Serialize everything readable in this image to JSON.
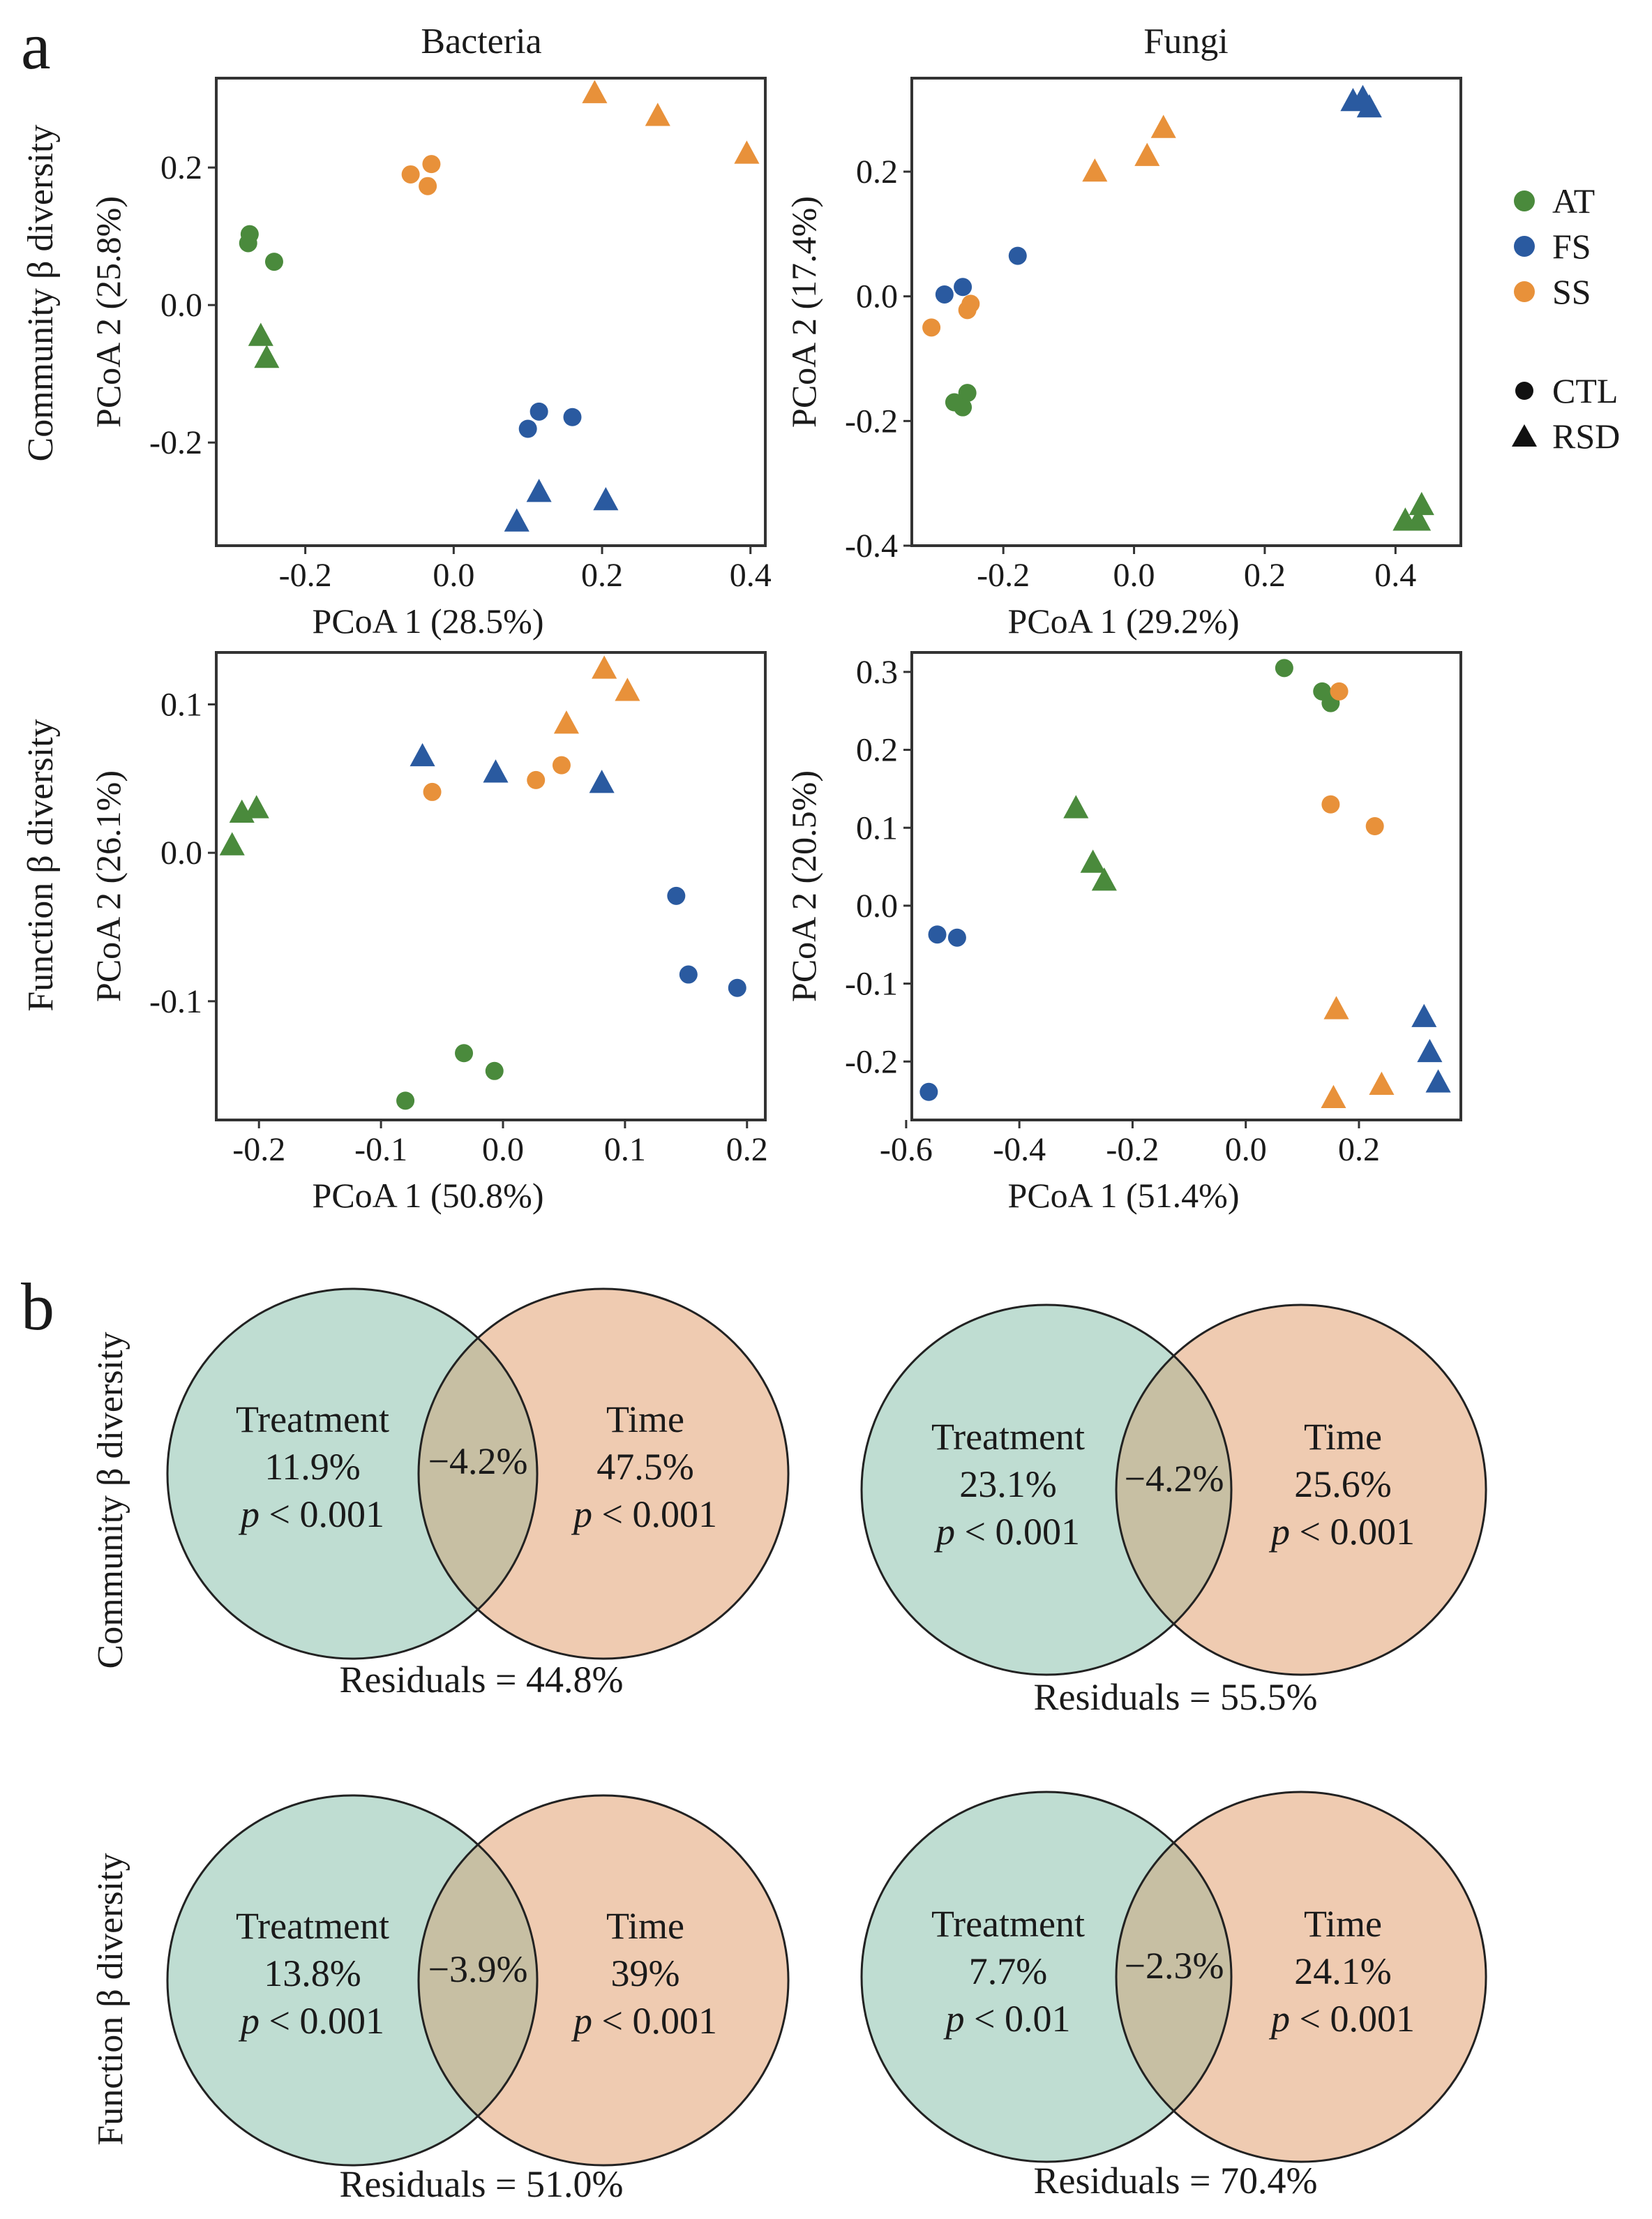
{
  "figure": {
    "panel_a_label": "a",
    "panel_b_label": "b",
    "col_titles": [
      "Bacteria",
      "Fungi"
    ],
    "row_titles": [
      "Community β diversity",
      "Function β diversity"
    ],
    "legend": {
      "groups": [
        {
          "label": "AT",
          "color": "#4a8a3c"
        },
        {
          "label": "FS",
          "color": "#2a5aa0"
        },
        {
          "label": "SS",
          "color": "#e8913a"
        }
      ],
      "shapes": [
        {
          "label": "CTL",
          "shape": "circle"
        },
        {
          "label": "RSD",
          "shape": "triangle"
        }
      ]
    }
  },
  "chart_data": [
    {
      "type": "scatter",
      "id": "bact_comm",
      "xlabel": "PCoA 1 (28.5%)",
      "ylabel": "PCoA 2 (25.8%)",
      "xlim": [
        -0.32,
        0.42
      ],
      "ylim": [
        -0.35,
        0.33
      ],
      "xticks": [
        -0.2,
        0.0,
        0.2,
        0.4
      ],
      "xtick_labels": [
        "-0.2",
        "0.0",
        "0.2",
        "0.4"
      ],
      "yticks": [
        -0.2,
        0.0,
        0.2
      ],
      "ytick_labels": [
        "-0.2",
        "0.0",
        "0.2"
      ],
      "points": [
        {
          "g": "AT",
          "s": "CTL",
          "x": -0.275,
          "y": 0.103
        },
        {
          "g": "AT",
          "s": "CTL",
          "x": -0.277,
          "y": 0.09
        },
        {
          "g": "AT",
          "s": "CTL",
          "x": -0.242,
          "y": 0.063
        },
        {
          "g": "AT",
          "s": "RSD",
          "x": -0.26,
          "y": -0.045
        },
        {
          "g": "AT",
          "s": "RSD",
          "x": -0.252,
          "y": -0.077
        },
        {
          "g": "FS",
          "s": "CTL",
          "x": 0.115,
          "y": -0.155
        },
        {
          "g": "FS",
          "s": "CTL",
          "x": 0.16,
          "y": -0.163
        },
        {
          "g": "FS",
          "s": "CTL",
          "x": 0.1,
          "y": -0.18
        },
        {
          "g": "FS",
          "s": "RSD",
          "x": 0.115,
          "y": -0.272
        },
        {
          "g": "FS",
          "s": "RSD",
          "x": 0.205,
          "y": -0.284
        },
        {
          "g": "FS",
          "s": "RSD",
          "x": 0.085,
          "y": -0.315
        },
        {
          "g": "SS",
          "s": "CTL",
          "x": -0.058,
          "y": 0.19
        },
        {
          "g": "SS",
          "s": "CTL",
          "x": -0.03,
          "y": 0.205
        },
        {
          "g": "SS",
          "s": "CTL",
          "x": -0.035,
          "y": 0.173
        },
        {
          "g": "SS",
          "s": "RSD",
          "x": 0.19,
          "y": 0.308
        },
        {
          "g": "SS",
          "s": "RSD",
          "x": 0.275,
          "y": 0.275
        },
        {
          "g": "SS",
          "s": "RSD",
          "x": 0.395,
          "y": 0.22
        }
      ]
    },
    {
      "type": "scatter",
      "id": "fungi_comm",
      "xlabel": "PCoA 1 (29.2%)",
      "ylabel": "PCoA 2 (17.4%)",
      "xlim": [
        -0.34,
        0.5
      ],
      "ylim": [
        -0.4,
        0.35
      ],
      "xticks": [
        -0.2,
        0.0,
        0.2,
        0.4
      ],
      "xtick_labels": [
        "-0.2",
        "0.0",
        "0.2",
        "0.4"
      ],
      "yticks": [
        -0.4,
        -0.2,
        0.0,
        0.2
      ],
      "ytick_labels": [
        "-0.4",
        "-0.2",
        "0.0",
        "0.2"
      ],
      "points": [
        {
          "g": "AT",
          "s": "CTL",
          "x": -0.255,
          "y": -0.155
        },
        {
          "g": "AT",
          "s": "CTL",
          "x": -0.275,
          "y": -0.17
        },
        {
          "g": "AT",
          "s": "CTL",
          "x": -0.262,
          "y": -0.178
        },
        {
          "g": "AT",
          "s": "RSD",
          "x": 0.44,
          "y": -0.335
        },
        {
          "g": "AT",
          "s": "RSD",
          "x": 0.415,
          "y": -0.36
        },
        {
          "g": "AT",
          "s": "RSD",
          "x": 0.435,
          "y": -0.36
        },
        {
          "g": "FS",
          "s": "CTL",
          "x": -0.178,
          "y": 0.065
        },
        {
          "g": "FS",
          "s": "CTL",
          "x": -0.262,
          "y": 0.015
        },
        {
          "g": "FS",
          "s": "CTL",
          "x": -0.29,
          "y": 0.003
        },
        {
          "g": "FS",
          "s": "RSD",
          "x": 0.335,
          "y": 0.313
        },
        {
          "g": "FS",
          "s": "RSD",
          "x": 0.35,
          "y": 0.318
        },
        {
          "g": "FS",
          "s": "RSD",
          "x": 0.36,
          "y": 0.303
        },
        {
          "g": "SS",
          "s": "CTL",
          "x": -0.25,
          "y": -0.012
        },
        {
          "g": "SS",
          "s": "CTL",
          "x": -0.255,
          "y": -0.022
        },
        {
          "g": "SS",
          "s": "CTL",
          "x": -0.31,
          "y": -0.05
        },
        {
          "g": "SS",
          "s": "RSD",
          "x": -0.06,
          "y": 0.2
        },
        {
          "g": "SS",
          "s": "RSD",
          "x": 0.02,
          "y": 0.225
        },
        {
          "g": "SS",
          "s": "RSD",
          "x": 0.045,
          "y": 0.27
        }
      ]
    },
    {
      "type": "scatter",
      "id": "bact_func",
      "xlabel": "PCoA 1 (50.8%)",
      "ylabel": "PCoA 2 (26.1%)",
      "xlim": [
        -0.235,
        0.215
      ],
      "ylim": [
        -0.18,
        0.135
      ],
      "xticks": [
        -0.2,
        -0.1,
        0.0,
        0.1,
        0.2
      ],
      "xtick_labels": [
        "-0.2",
        "-0.1",
        "0.0",
        "0.1",
        "0.2"
      ],
      "yticks": [
        -0.1,
        0.0,
        0.1
      ],
      "ytick_labels": [
        "-0.1",
        "0.0",
        "0.1"
      ],
      "points": [
        {
          "g": "AT",
          "s": "CTL",
          "x": -0.08,
          "y": -0.167
        },
        {
          "g": "AT",
          "s": "CTL",
          "x": -0.032,
          "y": -0.135
        },
        {
          "g": "AT",
          "s": "CTL",
          "x": -0.007,
          "y": -0.147
        },
        {
          "g": "AT",
          "s": "RSD",
          "x": -0.222,
          "y": 0.005
        },
        {
          "g": "AT",
          "s": "RSD",
          "x": -0.214,
          "y": 0.027
        },
        {
          "g": "AT",
          "s": "RSD",
          "x": -0.202,
          "y": 0.03
        },
        {
          "g": "FS",
          "s": "CTL",
          "x": 0.142,
          "y": -0.029
        },
        {
          "g": "FS",
          "s": "CTL",
          "x": 0.152,
          "y": -0.082
        },
        {
          "g": "FS",
          "s": "CTL",
          "x": 0.192,
          "y": -0.091
        },
        {
          "g": "FS",
          "s": "RSD",
          "x": -0.066,
          "y": 0.065
        },
        {
          "g": "FS",
          "s": "RSD",
          "x": -0.006,
          "y": 0.054
        },
        {
          "g": "FS",
          "s": "RSD",
          "x": 0.081,
          "y": 0.047
        },
        {
          "g": "SS",
          "s": "CTL",
          "x": -0.058,
          "y": 0.041
        },
        {
          "g": "SS",
          "s": "CTL",
          "x": 0.027,
          "y": 0.049
        },
        {
          "g": "SS",
          "s": "CTL",
          "x": 0.048,
          "y": 0.059
        },
        {
          "g": "SS",
          "s": "RSD",
          "x": 0.052,
          "y": 0.087
        },
        {
          "g": "SS",
          "s": "RSD",
          "x": 0.083,
          "y": 0.124
        },
        {
          "g": "SS",
          "s": "RSD",
          "x": 0.102,
          "y": 0.109
        }
      ]
    },
    {
      "type": "scatter",
      "id": "fungi_func",
      "xlabel": "PCoA 1 (51.4%)",
      "ylabel": "PCoA 2 (20.5%)",
      "xlim": [
        -0.59,
        0.38
      ],
      "ylim": [
        -0.275,
        0.325
      ],
      "xticks": [
        -0.6,
        -0.4,
        -0.2,
        0.0,
        0.2
      ],
      "xtick_labels": [
        "-0.6",
        "-0.4",
        "-0.2",
        "0.0",
        "0.2"
      ],
      "yticks": [
        -0.2,
        -0.1,
        0.0,
        0.1,
        0.2,
        0.3
      ],
      "ytick_labels": [
        "-0.2",
        "-0.1",
        "0.0",
        "0.1",
        "0.2",
        "0.3"
      ],
      "points": [
        {
          "g": "AT",
          "s": "CTL",
          "x": 0.068,
          "y": 0.305
        },
        {
          "g": "AT",
          "s": "CTL",
          "x": 0.135,
          "y": 0.275
        },
        {
          "g": "AT",
          "s": "CTL",
          "x": 0.15,
          "y": 0.26
        },
        {
          "g": "AT",
          "s": "RSD",
          "x": -0.3,
          "y": 0.125
        },
        {
          "g": "AT",
          "s": "RSD",
          "x": -0.27,
          "y": 0.055
        },
        {
          "g": "AT",
          "s": "RSD",
          "x": -0.25,
          "y": 0.032
        },
        {
          "g": "FS",
          "s": "CTL",
          "x": -0.545,
          "y": -0.037
        },
        {
          "g": "FS",
          "s": "CTL",
          "x": -0.51,
          "y": -0.041
        },
        {
          "g": "FS",
          "s": "CTL",
          "x": -0.56,
          "y": -0.239
        },
        {
          "g": "FS",
          "s": "RSD",
          "x": 0.315,
          "y": -0.143
        },
        {
          "g": "FS",
          "s": "RSD",
          "x": 0.325,
          "y": -0.188
        },
        {
          "g": "FS",
          "s": "RSD",
          "x": 0.34,
          "y": -0.227
        },
        {
          "g": "SS",
          "s": "CTL",
          "x": 0.165,
          "y": 0.275
        },
        {
          "g": "SS",
          "s": "CTL",
          "x": 0.15,
          "y": 0.13
        },
        {
          "g": "SS",
          "s": "CTL",
          "x": 0.228,
          "y": 0.102
        },
        {
          "g": "SS",
          "s": "RSD",
          "x": 0.16,
          "y": -0.133
        },
        {
          "g": "SS",
          "s": "RSD",
          "x": 0.24,
          "y": -0.23
        },
        {
          "g": "SS",
          "s": "RSD",
          "x": 0.155,
          "y": -0.247
        }
      ]
    }
  ],
  "venn": [
    {
      "id": "venn_bact_comm",
      "treatment_label": "Treatment",
      "treatment_value": "11.9%",
      "treatment_p_sym": "p",
      "treatment_p": " < 0.001",
      "overlap": "−4.2%",
      "time_label": "Time",
      "time_value": "47.5%",
      "time_p_sym": "p",
      "time_p": " < 0.001",
      "residuals": "Residuals = 44.8%"
    },
    {
      "id": "venn_fungi_comm",
      "treatment_label": "Treatment",
      "treatment_value": "23.1%",
      "treatment_p_sym": "p",
      "treatment_p": " < 0.001",
      "overlap": "−4.2%",
      "time_label": "Time",
      "time_value": "25.6%",
      "time_p_sym": "p",
      "time_p": " < 0.001",
      "residuals": "Residuals = 55.5%"
    },
    {
      "id": "venn_bact_func",
      "treatment_label": "Treatment",
      "treatment_value": "13.8%",
      "treatment_p_sym": "p",
      "treatment_p": " < 0.001",
      "overlap": "−3.9%",
      "time_label": "Time",
      "time_value": "39%",
      "time_p_sym": "p",
      "time_p": " < 0.001",
      "residuals": "Residuals = 51.0%"
    },
    {
      "id": "venn_fungi_func",
      "treatment_label": "Treatment",
      "treatment_value": "7.7%",
      "treatment_p_sym": "p",
      "treatment_p": " < 0.01",
      "overlap": "−2.3%",
      "time_label": "Time",
      "time_value": "24.1%",
      "time_p_sym": "p",
      "time_p": " < 0.001",
      "residuals": "Residuals = 70.4%"
    }
  ],
  "colors": {
    "treatment_fill": "#bfddd2",
    "time_fill": "#efcbb1",
    "overlap_fill": "#c7bfa3",
    "axis": "#333333"
  }
}
